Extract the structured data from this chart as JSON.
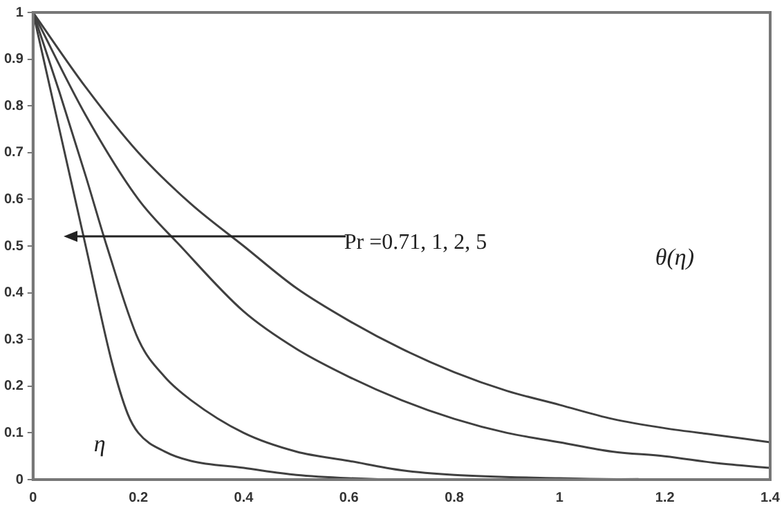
{
  "chart_data": {
    "type": "line",
    "xlabel": "η",
    "ylabel": "θ(η)",
    "annotations": [
      "Pr =0.71, 1, 2, 5"
    ],
    "xlim": [
      0,
      1.4
    ],
    "ylim": [
      0,
      1
    ],
    "xticks": [
      0,
      0.2,
      0.4,
      0.6,
      0.8,
      1,
      1.2,
      1.4
    ],
    "yticks": [
      0,
      0.1,
      0.2,
      0.3,
      0.4,
      0.5,
      0.6,
      0.7,
      0.8,
      0.9,
      1
    ],
    "grid": false,
    "legend": false,
    "marker": "none",
    "line_style": "solid",
    "series": [
      {
        "color": "#404040",
        "x": [
          0,
          0.1,
          0.2,
          0.3,
          0.4,
          0.5,
          0.6,
          0.7,
          0.8,
          0.9,
          1,
          1.1,
          1.2,
          1.3,
          1.4
        ],
        "values": [
          1,
          0.84,
          0.7,
          0.59,
          0.5,
          0.41,
          0.34,
          0.28,
          0.23,
          0.19,
          0.16,
          0.13,
          0.11,
          0.095,
          0.08
        ]
      },
      {
        "color": "#404040",
        "x": [
          0,
          0.1,
          0.2,
          0.28,
          0.4,
          0.5,
          0.6,
          0.7,
          0.8,
          0.9,
          1,
          1.1,
          1.2,
          1.3,
          1.4
        ],
        "values": [
          1,
          0.78,
          0.6,
          0.5,
          0.36,
          0.28,
          0.22,
          0.17,
          0.13,
          0.1,
          0.08,
          0.06,
          0.05,
          0.035,
          0.025
        ]
      },
      {
        "color": "#404040",
        "x": [
          0,
          0.05,
          0.1,
          0.14,
          0.2,
          0.25,
          0.3,
          0.4,
          0.5,
          0.6,
          0.7,
          0.8,
          1,
          1.2,
          1.4
        ],
        "values": [
          1,
          0.83,
          0.65,
          0.5,
          0.3,
          0.22,
          0.17,
          0.1,
          0.06,
          0.04,
          0.02,
          0.01,
          0.003,
          0,
          0
        ]
      },
      {
        "color": "#404040",
        "x": [
          0,
          0.05,
          0.1,
          0.15,
          0.18,
          0.2,
          0.25,
          0.3,
          0.4,
          0.5,
          0.6,
          0.7,
          1,
          1.15
        ],
        "values": [
          1,
          0.75,
          0.5,
          0.25,
          0.14,
          0.1,
          0.06,
          0.04,
          0.025,
          0.01,
          0.003,
          0,
          0,
          0.001
        ]
      }
    ]
  }
}
